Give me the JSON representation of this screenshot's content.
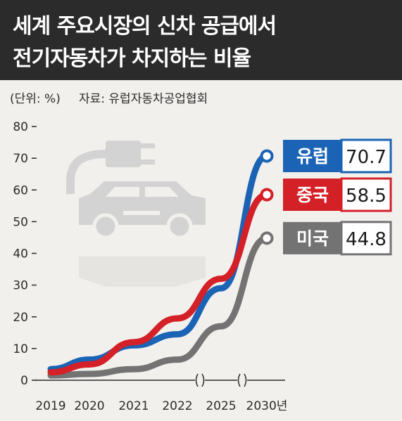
{
  "title": {
    "line1": "세계 주요시장의 신차 공급에서",
    "line2": "전기자동차가 차지하는 비율"
  },
  "unit_label": "(단위: %)",
  "source_label": "자료: 유럽자동차공업협회",
  "colors": {
    "header_bg": "#2b2b2b",
    "background": "#f2f0ed",
    "europe": "#1a63b5",
    "china": "#d42027",
    "usa": "#737373",
    "icon": "#d3d3d3"
  },
  "icon": "electric-car-plug-icon",
  "chart_data": {
    "type": "line",
    "categories": [
      "2019",
      "2020",
      "2021",
      "2022",
      "2025",
      "2030년"
    ],
    "y_ticks": [
      "0",
      "10",
      "20",
      "30",
      "40",
      "50",
      "60",
      "70",
      "80"
    ],
    "ylim": [
      0,
      80
    ],
    "grid": false,
    "axis_breaks_after": [
      "2022",
      "2025"
    ],
    "series": [
      {
        "name": "미국",
        "color": "#737373",
        "values": [
          1.5,
          2,
          3.5,
          6.5,
          17,
          44.8
        ],
        "end_label": "44.8"
      },
      {
        "name": "유럽",
        "color": "#1a63b5",
        "values": [
          3.5,
          6.5,
          11,
          14.5,
          29,
          70.7
        ],
        "end_label": "70.7"
      },
      {
        "name": "중국",
        "color": "#d42027",
        "values": [
          2.5,
          5,
          12,
          19.5,
          32,
          58.5
        ],
        "end_label": "58.5"
      }
    ]
  }
}
